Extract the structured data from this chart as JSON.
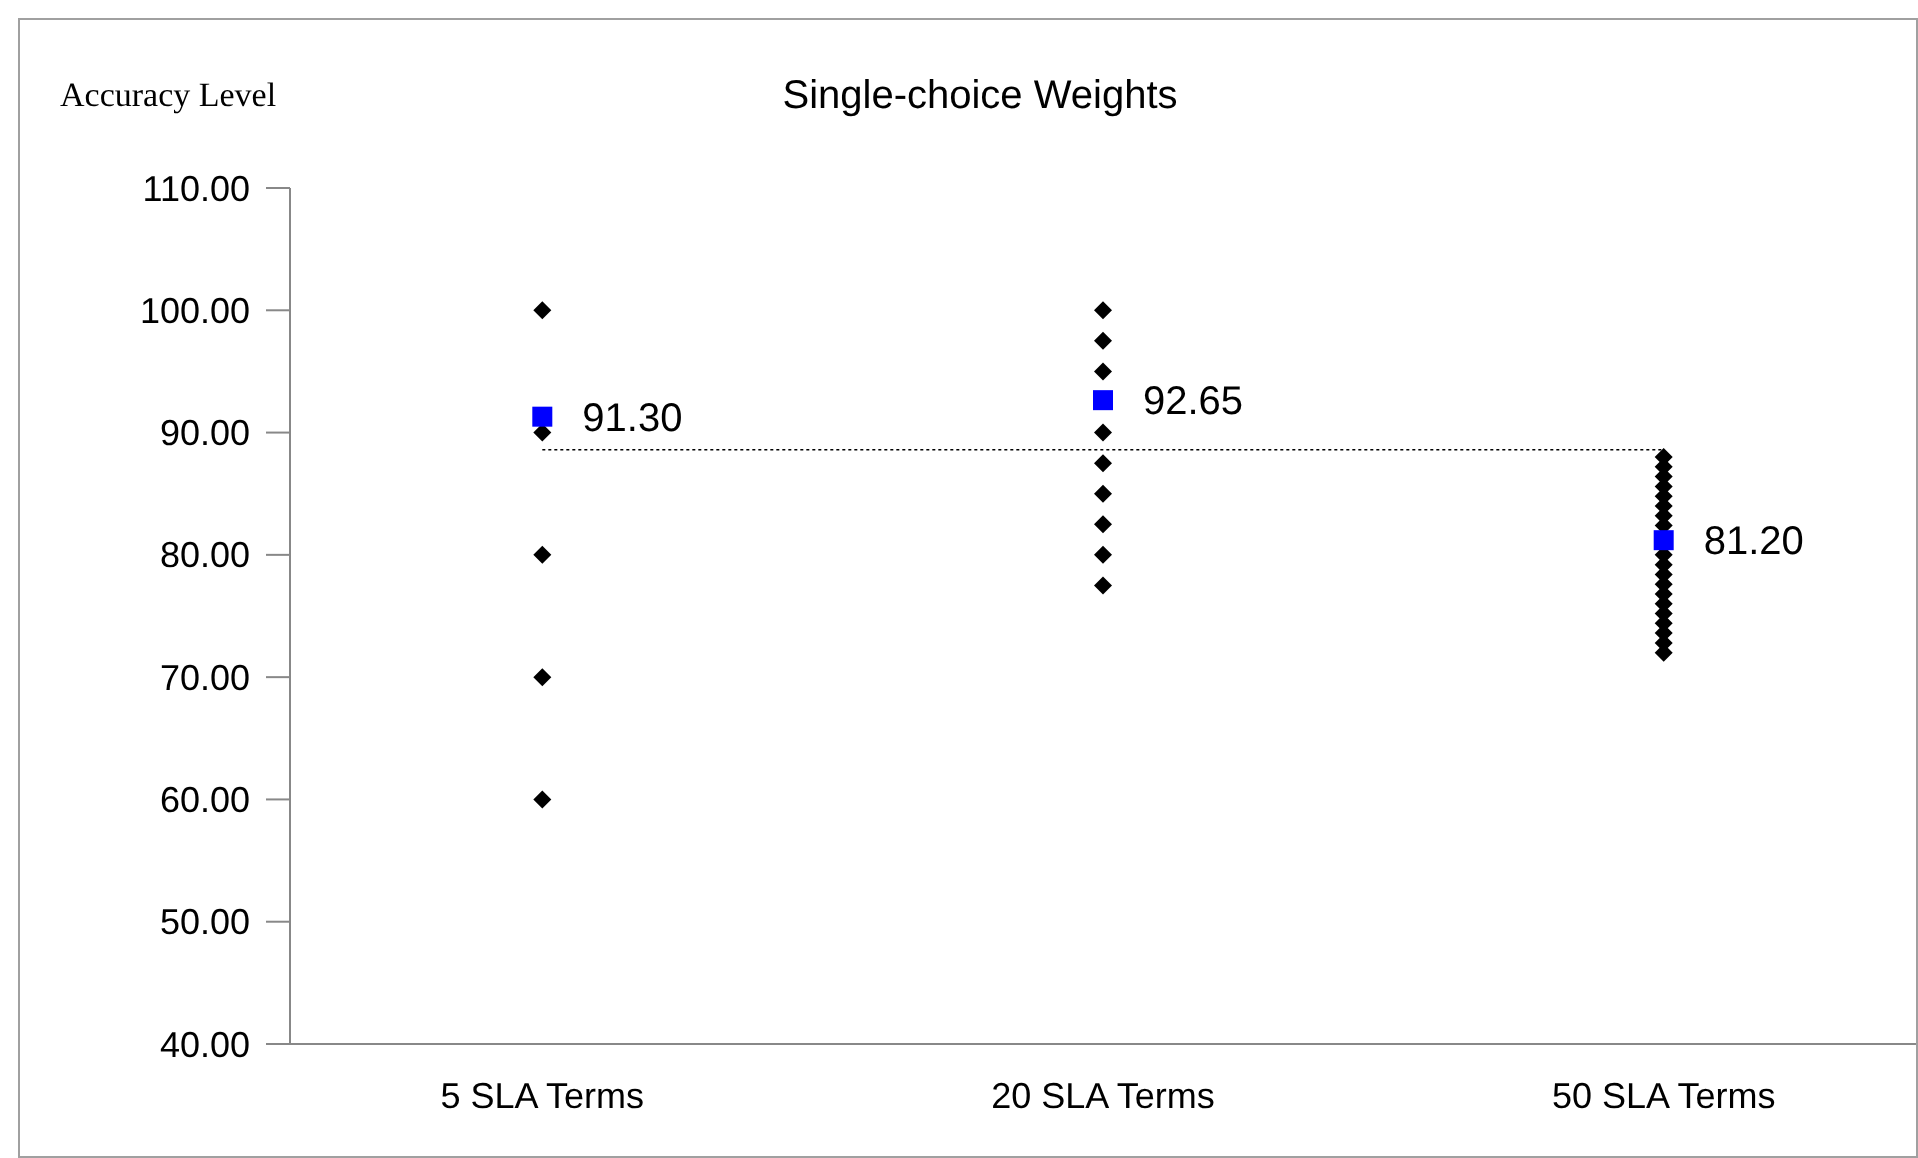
{
  "chart_data": {
    "type": "scatter",
    "title": "Single-choice Weights",
    "ylabel": "Accuracy Level",
    "categories": [
      "5 SLA Terms",
      "20 SLA Terms",
      "50 SLA Terms"
    ],
    "ylim": [
      40,
      110
    ],
    "yticks": [
      {
        "value": 40,
        "label": "40.00"
      },
      {
        "value": 50,
        "label": "50.00"
      },
      {
        "value": 60,
        "label": "60.00"
      },
      {
        "value": 70,
        "label": "70.00"
      },
      {
        "value": 80,
        "label": "80.00"
      },
      {
        "value": 90,
        "label": "90.00"
      },
      {
        "value": 100,
        "label": "100.00"
      },
      {
        "value": 110,
        "label": "110.00"
      }
    ],
    "grid": false,
    "ref_lines": [
      {
        "axis": "y",
        "value": 88.6,
        "color": "#000000",
        "line_style": "dotted"
      }
    ],
    "series": [
      {
        "color": "#000000",
        "marker": "diamond",
        "x": [
          "5 SLA Terms",
          "5 SLA Terms",
          "5 SLA Terms",
          "5 SLA Terms",
          "5 SLA Terms",
          "20 SLA Terms",
          "20 SLA Terms",
          "20 SLA Terms",
          "20 SLA Terms",
          "20 SLA Terms",
          "20 SLA Terms",
          "20 SLA Terms",
          "20 SLA Terms",
          "20 SLA Terms",
          "20 SLA Terms",
          "50 SLA Terms",
          "50 SLA Terms",
          "50 SLA Terms",
          "50 SLA Terms",
          "50 SLA Terms",
          "50 SLA Terms",
          "50 SLA Terms",
          "50 SLA Terms",
          "50 SLA Terms",
          "50 SLA Terms",
          "50 SLA Terms",
          "50 SLA Terms",
          "50 SLA Terms",
          "50 SLA Terms",
          "50 SLA Terms",
          "50 SLA Terms",
          "50 SLA Terms",
          "50 SLA Terms",
          "50 SLA Terms",
          "50 SLA Terms",
          "50 SLA Terms"
        ],
        "values": [
          100,
          90,
          80,
          70,
          60,
          100,
          97.5,
          95,
          null,
          90,
          87.5,
          85,
          82.5,
          80,
          77.5,
          88,
          87.2,
          86.4,
          85.6,
          84.8,
          84,
          83.2,
          82.4,
          null,
          null,
          80,
          79.2,
          78.4,
          77.6,
          76.8,
          76,
          75.2,
          74.4,
          73.6,
          72.8,
          72
        ]
      },
      {
        "color": "#0000ff",
        "marker": "square",
        "x": [
          "5 SLA Terms",
          "20 SLA Terms",
          "50 SLA Terms"
        ],
        "values": [
          91.3,
          92.65,
          81.2
        ],
        "value_labels": [
          "91.30",
          "92.65",
          "81.20"
        ]
      }
    ]
  }
}
